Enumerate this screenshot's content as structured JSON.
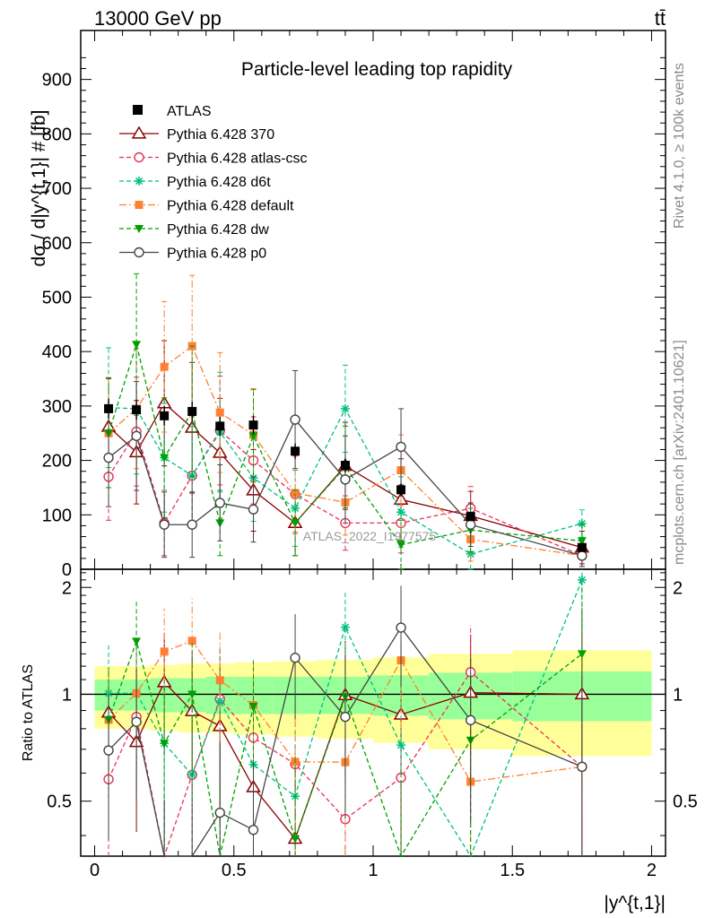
{
  "header": {
    "energy_label": "13000 GeV pp",
    "process_label": "tt̄"
  },
  "side_text": {
    "rivet_label": "Rivet 4.1.0, ≥ 100k events",
    "mcplots_label": "mcplots.cern.ch [arXiv:2401.10621]"
  },
  "colors": {
    "ATLAS": "#000000",
    "Pythia 6.428 370": "#8b0000",
    "Pythia 6.428 atlas-csc": "#e8305a",
    "Pythia 6.428 d6t": "#00c080",
    "Pythia 6.428 default": "#ff8030",
    "Pythia 6.428 dw": "#00a000",
    "Pythia 6.428 p0": "#444444",
    "band_inner": "#99ff99",
    "band_outer": "#ffff99"
  },
  "chart_data": {
    "type": "line",
    "title": "Particle-level leading top rapidity",
    "xlabel": "|y^{t,1}|",
    "ylabel": "dσ / d|y^{t,1}| # [fb]",
    "ratio_ylabel": "Ratio to ATLAS",
    "watermark": "ATLAS_2022_I1977575",
    "xlim": [
      -0.05,
      2.05
    ],
    "ylim": [
      0,
      990
    ],
    "ratio_ylim": [
      0.35,
      2.25
    ],
    "x_ticks": [
      "0",
      "0.5",
      "1",
      "1.5",
      "2"
    ],
    "y_ticks": [
      "0",
      "100",
      "200",
      "300",
      "400",
      "500",
      "600",
      "700",
      "800",
      "900"
    ],
    "ratio_ticks": [
      "0.5",
      "1",
      "2"
    ],
    "bin_edges": [
      0,
      0.1,
      0.2,
      0.3,
      0.4,
      0.5,
      0.64,
      0.8,
      1.0,
      1.2,
      1.5,
      2.0
    ],
    "x": [
      0.05,
      0.15,
      0.25,
      0.35,
      0.45,
      0.57,
      0.72,
      0.9,
      1.1,
      1.35,
      1.75
    ],
    "atlas": {
      "name": "ATLAS",
      "values": [
        295,
        293,
        282,
        290,
        263,
        265,
        217,
        191,
        146,
        97,
        40
      ],
      "errors": [
        18,
        18,
        18,
        18,
        17,
        17,
        14,
        13,
        12,
        9,
        6
      ],
      "band_inner": [
        0.1,
        0.1,
        0.11,
        0.11,
        0.12,
        0.12,
        0.12,
        0.12,
        0.13,
        0.15,
        0.16
      ],
      "band_outer": [
        0.2,
        0.2,
        0.21,
        0.22,
        0.22,
        0.23,
        0.24,
        0.25,
        0.27,
        0.3,
        0.33
      ]
    },
    "series": [
      {
        "name": "Pythia 6.428 370",
        "style": "solid",
        "marker": "triangle-open",
        "values": [
          262,
          215,
          305,
          260,
          214,
          145,
          85,
          190,
          128,
          98,
          40
        ],
        "errors": [
          90,
          95,
          115,
          120,
          100,
          75,
          60,
          80,
          75,
          45,
          30
        ]
      },
      {
        "name": "Pythia 6.428 atlas-csc",
        "style": "dash",
        "marker": "circle-open",
        "values": [
          170,
          253,
          85,
          172,
          255,
          200,
          138,
          85,
          85,
          112,
          25
        ],
        "errors": [
          80,
          100,
          60,
          90,
          100,
          80,
          70,
          50,
          55,
          40,
          20
        ]
      },
      {
        "name": "Pythia 6.428 d6t",
        "style": "dash",
        "marker": "star",
        "values": [
          297,
          295,
          205,
          172,
          252,
          168,
          112,
          295,
          105,
          28,
          84
        ],
        "errors": [
          110,
          120,
          100,
          90,
          110,
          80,
          70,
          80,
          65,
          30,
          25
        ]
      },
      {
        "name": "Pythia 6.428 default",
        "style": "dashdot",
        "marker": "square",
        "values": [
          250,
          295,
          372,
          410,
          288,
          247,
          140,
          123,
          182,
          55,
          25
        ],
        "errors": [
          100,
          110,
          120,
          130,
          110,
          85,
          75,
          60,
          65,
          40,
          20
        ]
      },
      {
        "name": "Pythia 6.428 dw",
        "style": "dash",
        "marker": "triangle-down",
        "values": [
          250,
          413,
          205,
          290,
          85,
          245,
          85,
          188,
          45,
          72,
          52
        ],
        "errors": [
          100,
          130,
          110,
          120,
          60,
          85,
          60,
          75,
          45,
          40,
          30
        ]
      },
      {
        "name": "Pythia 6.428 p0",
        "style": "solid",
        "marker": "circle-open",
        "values": [
          205,
          245,
          82,
          82,
          122,
          110,
          275,
          165,
          225,
          82,
          25
        ],
        "errors": [
          90,
          100,
          60,
          60,
          70,
          60,
          90,
          80,
          70,
          40,
          20
        ]
      }
    ]
  }
}
